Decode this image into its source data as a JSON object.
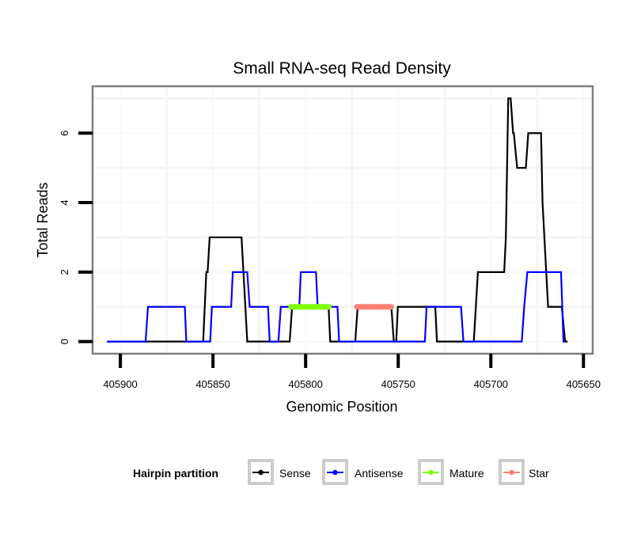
{
  "chart_data": {
    "type": "line",
    "title": "Small RNA-seq Read Density",
    "xlabel": "Genomic Position",
    "ylabel": "Total Reads",
    "xlim": [
      405915,
      405645
    ],
    "x_reversed": true,
    "ylim": [
      -0.35,
      7.35
    ],
    "x_ticks": [
      405900,
      405850,
      405800,
      405750,
      405700,
      405650
    ],
    "x_tick_labels": [
      "405900",
      "405850",
      "405800",
      "405750",
      "405700",
      "405650"
    ],
    "y_ticks": [
      0,
      2,
      4,
      6
    ],
    "y_tick_labels": [
      "0",
      "2",
      "4",
      "6"
    ],
    "x_minor_grid": [
      405875,
      405825,
      405775,
      405725,
      405675
    ],
    "y_minor_grid": [
      1,
      3,
      5,
      7
    ],
    "grid": true,
    "legend": {
      "title": "Hairpin partition",
      "placement": "bottom",
      "entries": [
        "Sense",
        "Antisense",
        "Mature",
        "Star"
      ]
    },
    "series": [
      {
        "name": "Sense",
        "color": "#000000",
        "style": "line",
        "points": [
          [
            405907.2,
            0
          ],
          [
            405855.3,
            0
          ],
          [
            405853.6,
            2
          ],
          [
            405852.9,
            2
          ],
          [
            405851.8,
            3
          ],
          [
            405834.6,
            3
          ],
          [
            405831.5,
            0
          ],
          [
            405808.6,
            0
          ],
          [
            405807.3,
            1
          ],
          [
            405787.6,
            1
          ],
          [
            405786.7,
            0
          ],
          [
            405773.2,
            0
          ],
          [
            405771.9,
            1
          ],
          [
            405753.7,
            1
          ],
          [
            405752.4,
            0
          ],
          [
            405751.1,
            0
          ],
          [
            405750.2,
            1
          ],
          [
            405730.0,
            1
          ],
          [
            405729.1,
            0
          ],
          [
            405709.2,
            0
          ],
          [
            405707.0,
            2
          ],
          [
            405692.8,
            2
          ],
          [
            405691.9,
            3
          ],
          [
            405690.6,
            7
          ],
          [
            405689.3,
            7
          ],
          [
            405688.0,
            6
          ],
          [
            405687.6,
            6
          ],
          [
            405685.8,
            5
          ],
          [
            405681.1,
            5
          ],
          [
            405679.8,
            6
          ],
          [
            405672.9,
            6
          ],
          [
            405672.1,
            4
          ],
          [
            405669.1,
            1
          ],
          [
            405661.7,
            1
          ],
          [
            405659.9,
            0
          ],
          [
            405658.6,
            0
          ]
        ]
      },
      {
        "name": "Antisense",
        "color": "#0000FF",
        "style": "line",
        "points": [
          [
            405907.2,
            0
          ],
          [
            405886.4,
            0
          ],
          [
            405885.1,
            1
          ],
          [
            405865.2,
            1
          ],
          [
            405864.4,
            0
          ],
          [
            405851.5,
            0
          ],
          [
            405850.6,
            1
          ],
          [
            405840.2,
            1
          ],
          [
            405839.3,
            2
          ],
          [
            405831.5,
            2
          ],
          [
            405830.2,
            1
          ],
          [
            405820.3,
            1
          ],
          [
            405819.4,
            0
          ],
          [
            405814.7,
            0
          ],
          [
            405813.4,
            1
          ],
          [
            405803.4,
            1
          ],
          [
            405802.6,
            2
          ],
          [
            405794.4,
            2
          ],
          [
            405793.5,
            1
          ],
          [
            405782.8,
            1
          ],
          [
            405781.9,
            0
          ],
          [
            405735.6,
            0
          ],
          [
            405734.7,
            1
          ],
          [
            405716.1,
            1
          ],
          [
            405714.8,
            0
          ],
          [
            405683.3,
            0
          ],
          [
            405682.0,
            1
          ],
          [
            405680.3,
            2
          ],
          [
            405662.1,
            2
          ],
          [
            405660.8,
            0
          ],
          [
            405659.9,
            0
          ]
        ]
      },
      {
        "name": "Mature",
        "color": "#7FFF00",
        "style": "segment",
        "points": [
          [
            405807.8,
            1
          ],
          [
            405787.5,
            1
          ]
        ]
      },
      {
        "name": "Star",
        "color": "#FA8072",
        "style": "segment",
        "points": [
          [
            405772.3,
            1
          ],
          [
            405753.7,
            1
          ]
        ]
      }
    ]
  }
}
